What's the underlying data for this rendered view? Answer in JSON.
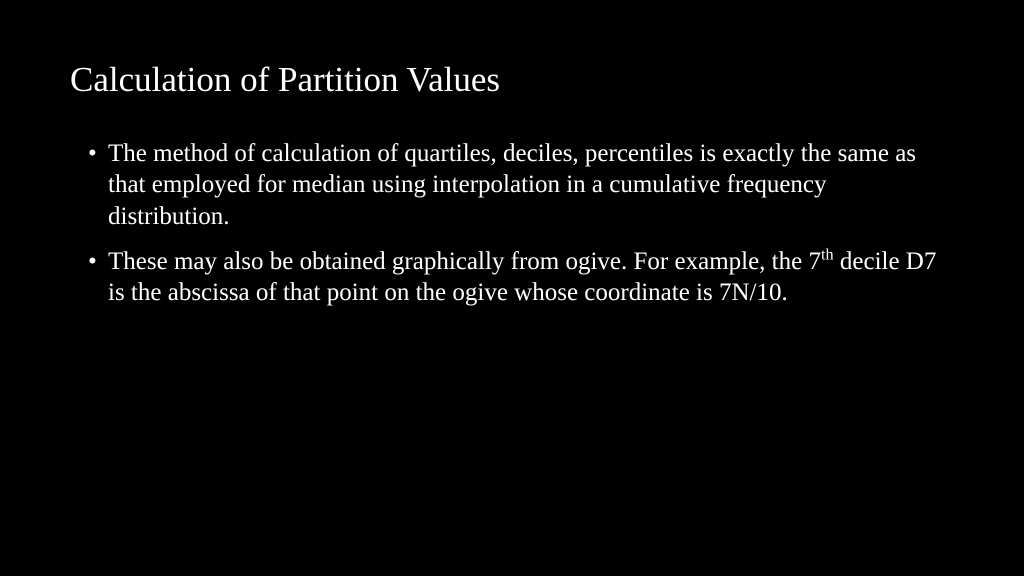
{
  "slide": {
    "title": "Calculation of Partition Values",
    "bullets": [
      {
        "text": "The method of calculation of quartiles, deciles, percentiles is exactly the same as that employed for median using interpolation in a cumulative frequency distribution."
      },
      {
        "prefix": "These may also be obtained graphically from ogive. For example, the 7",
        "sup": "th",
        "suffix": " decile D7 is the abscissa of that point on the ogive whose coordinate is 7N/10."
      }
    ],
    "background_color": "#000000",
    "text_color": "#ffffff",
    "title_fontsize": 35,
    "body_fontsize": 25,
    "font_family": "Times New Roman"
  }
}
